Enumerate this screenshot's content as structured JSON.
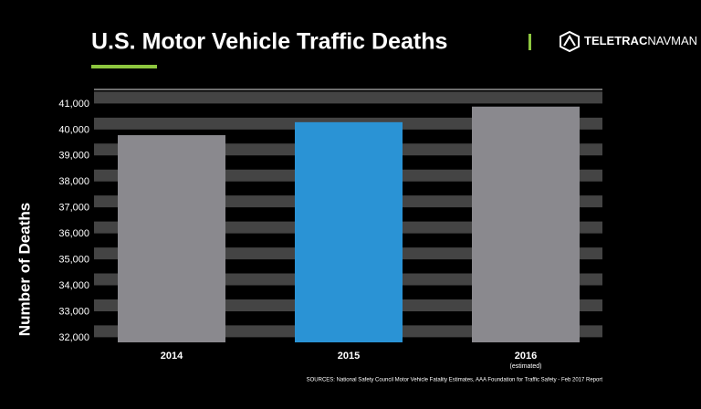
{
  "chart_data": {
    "type": "bar",
    "title": "U.S. Motor Vehicle Traffic Deaths",
    "logo": [
      "TELETRAC",
      "NAVMAN"
    ],
    "y_label": "Number of Deaths",
    "categories": [
      "2014",
      "2015",
      "2016"
    ],
    "category_note": "(estimated)",
    "values": [
      39800,
      40300,
      40900
    ],
    "colors": [
      "#8a898e",
      "#2a93d5",
      "#8a898e"
    ],
    "ylim": [
      31820,
      41560
    ],
    "yticks": [
      {
        "value": 32000,
        "label": "32,000"
      },
      {
        "value": 33000,
        "label": "33,000"
      },
      {
        "value": 34000,
        "label": "34,000"
      },
      {
        "value": 35000,
        "label": "35,000"
      },
      {
        "value": 36000,
        "label": "36,000"
      },
      {
        "value": 37000,
        "label": "37,000"
      },
      {
        "value": 38000,
        "label": "38,000"
      },
      {
        "value": 39000,
        "label": "39,000"
      },
      {
        "value": 40000,
        "label": "40,000"
      },
      {
        "value": 41000,
        "label": "41,000"
      }
    ],
    "grid": true,
    "source": "SOURCES: National Safety Council Motor Vehicle Fatality Estimates, AAA Foundation for Traffic Safety - Feb 2017 Report"
  }
}
